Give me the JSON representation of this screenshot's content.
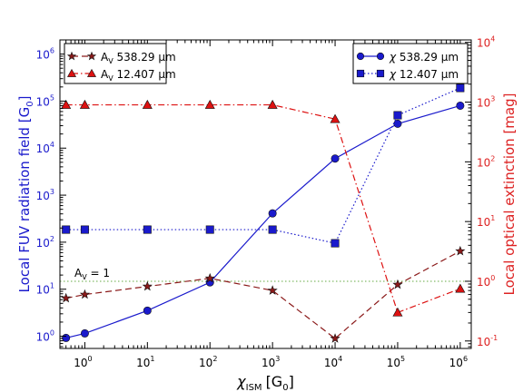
{
  "chart_data": {
    "type": "line",
    "xlabel_main": "χ",
    "xlabel_sub": "ISM",
    "xlabel_unit": "[G",
    "xlabel_unit_sub": "0",
    "xlabel_unit_end": "]",
    "ylabel_left_main": "Local FUV radiation field [G",
    "ylabel_left_sub": "0",
    "ylabel_left_end": "]",
    "ylabel_right": "Local optical extinction [mag]",
    "xscale": "log",
    "xlim": [
      0.4,
      1500000
    ],
    "ylim_left": [
      0.55,
      2000000
    ],
    "ylim_right": [
      0.075,
      11000
    ],
    "x_ticks": [
      1,
      10,
      100,
      1000,
      10000,
      100000,
      1000000
    ],
    "x_tick_exps": [
      "0",
      "1",
      "2",
      "3",
      "4",
      "5",
      "6"
    ],
    "left_ticks": [
      1,
      10,
      100,
      1000,
      10000,
      100000,
      1000000
    ],
    "left_tick_exps": [
      "0",
      "1",
      "2",
      "3",
      "4",
      "5",
      "6"
    ],
    "right_ticks": [
      0.1,
      1,
      10,
      100,
      1000,
      10000
    ],
    "right_tick_exps": [
      "-1",
      "0",
      "1",
      "2",
      "3",
      "4"
    ],
    "tick_base": "10",
    "colors": {
      "left_axis": "#1a1acc",
      "right_axis": "#dd2222",
      "chi_series": "#1a1acc",
      "av_star": "#8b1a1a",
      "av_triangle": "#dd1111",
      "ref_line": "#66aa44",
      "marker_edge": "#111111"
    },
    "reference_line": {
      "axis": "right",
      "value": 1,
      "label_main": "A",
      "label_sub": "V",
      "label_end": " = 1",
      "style": "dotted"
    },
    "x": [
      0.5,
      1,
      10,
      100,
      1000,
      10000,
      100000,
      1000000
    ],
    "series": [
      {
        "name_prefix": "χ ",
        "name_value": "538.29",
        "name_unit": " μm",
        "axis": "left",
        "marker": "circle",
        "line": "solid",
        "y": [
          0.92,
          1.15,
          3.5,
          14,
          410,
          6000,
          33000,
          80000
        ]
      },
      {
        "name_prefix": "χ ",
        "name_value": "12.407",
        "name_unit": " μm",
        "axis": "left",
        "marker": "square",
        "line": "dotted",
        "y": [
          185,
          185,
          185,
          185,
          185,
          95,
          50000,
          190000
        ]
      },
      {
        "name_prefix": "A",
        "name_sub": "V",
        "name_value": " 538.29",
        "name_unit": " μm",
        "axis": "right",
        "marker": "star",
        "line": "dashed",
        "y": [
          0.52,
          0.6,
          0.82,
          1.12,
          0.7,
          0.11,
          0.88,
          3.2
        ]
      },
      {
        "name_prefix": "A",
        "name_sub": "V",
        "name_value": " 12.407",
        "name_unit": " μm",
        "axis": "right",
        "marker": "triangle",
        "line": "dashdot",
        "y": [
          900,
          900,
          900,
          900,
          900,
          520,
          0.3,
          0.75
        ]
      }
    ],
    "legends": [
      "top-left",
      "top-right"
    ]
  }
}
